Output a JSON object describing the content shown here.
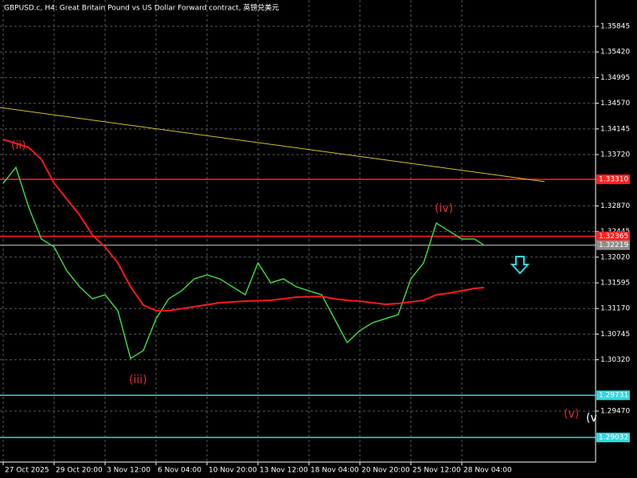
{
  "chart_data": {
    "type": "line",
    "title": "GBPUSD.c, H4:  Great Britain Pound vs US Dollar Forward contract, 英镑兑美元",
    "xlim": [
      -1,
      186
    ],
    "ylim": [
      1.28625,
      1.36281
    ],
    "yticks": [
      1.35845,
      {
        "value": 1.3542,
        "label": "1.35420"
      },
      1.34995,
      {
        "value": 1.3457,
        "label": "1.34570"
      },
      1.34145,
      {
        "value": 1.3372,
        "label": "1.33720"
      },
      {
        "value": 1.3287,
        "label": "1.32870"
      },
      1.32445,
      {
        "value": 1.3202,
        "label": "1.32020"
      },
      1.31595,
      {
        "value": 1.3117,
        "label": "1.31170"
      },
      1.30745,
      {
        "value": 1.3032,
        "label": "1.30320"
      },
      {
        "value": 1.2947,
        "label": "1.29470"
      }
    ],
    "xticks": [
      {
        "value": 0,
        "label": "27 Oct 2025"
      },
      {
        "value": 16,
        "label": "29 Oct 20:00"
      },
      {
        "value": 32,
        "label": "3 Nov 12:00"
      },
      {
        "value": 48,
        "label": "6 Nov 04:00"
      },
      {
        "value": 64,
        "label": "10 Nov 20:00"
      },
      {
        "value": 80,
        "label": "13 Nov 12:00"
      },
      {
        "value": 96,
        "label": "18 Nov 04:00"
      },
      {
        "value": 112,
        "label": "20 Nov 20:00"
      },
      {
        "value": 128,
        "label": "25 Nov 12:00"
      },
      {
        "value": 144,
        "label": "28 Nov 04:00"
      }
    ],
    "grid": true,
    "series": [
      {
        "color": "#3fd43f",
        "x": [
          0,
          4,
          8,
          12,
          16,
          20,
          24,
          28,
          32,
          36,
          40,
          44,
          48,
          52,
          56,
          60,
          64,
          68,
          72,
          76,
          80,
          84,
          88,
          92,
          96,
          100,
          104,
          108,
          112,
          116,
          120,
          124,
          128,
          132,
          136,
          140,
          144,
          148,
          151
        ],
        "values": [
          1.33245,
          1.33509,
          1.32849,
          1.32321,
          1.32189,
          1.31793,
          1.31529,
          1.31331,
          1.31397,
          1.31133,
          1.30341,
          1.30473,
          1.31001,
          1.31331,
          1.31463,
          1.31661,
          1.31727,
          1.31661,
          1.31529,
          1.31397,
          1.31925,
          1.31595,
          1.31661,
          1.31529,
          1.31463,
          1.31397,
          1.31001,
          1.30605,
          1.30803,
          1.30935,
          1.31001,
          1.31067,
          1.31661,
          1.31925,
          1.32585,
          1.32453,
          1.32321,
          1.32321,
          1.32216
        ]
      },
      {
        "color": "#ff1a1a",
        "x": [
          0,
          8,
          12,
          16,
          24,
          28,
          32,
          36,
          40,
          44,
          48,
          52,
          60,
          68,
          76,
          84,
          92,
          100,
          104,
          108,
          112,
          116,
          120,
          124,
          128,
          132,
          136,
          140,
          144,
          148,
          151
        ],
        "values": [
          1.33971,
          1.33839,
          1.33641,
          1.33245,
          1.32717,
          1.32387,
          1.32189,
          1.31925,
          1.31529,
          1.31226,
          1.31133,
          1.31133,
          1.31199,
          1.31265,
          1.31292,
          1.31305,
          1.31358,
          1.31371,
          1.31331,
          1.31305,
          1.31292,
          1.31265,
          1.31239,
          1.31252,
          1.31279,
          1.31305,
          1.31397,
          1.31424,
          1.31463,
          1.31503,
          1.31516
        ]
      },
      {
        "color": "#d4c32a",
        "x": [
          -1,
          170
        ],
        "values": [
          1.34499,
          1.33272
        ]
      }
    ],
    "levels": [
      {
        "value": 1.3331,
        "label": "1.33310",
        "color": "#ff2020"
      },
      {
        "value": 1.32365,
        "label": "1.32365",
        "color": "#ff2020"
      },
      {
        "value": 1.32219,
        "label": "1.32219",
        "color": "#8c8c8c"
      },
      {
        "value": 1.29731,
        "label": "1.29731",
        "color": "#2fd8e0"
      },
      {
        "value": 1.29032,
        "label": "1.29032",
        "color": "#2fd8e0"
      }
    ],
    "annotations": [
      "(ii)",
      "(iii)",
      "(iv)",
      "(v)",
      "(v"
    ]
  }
}
